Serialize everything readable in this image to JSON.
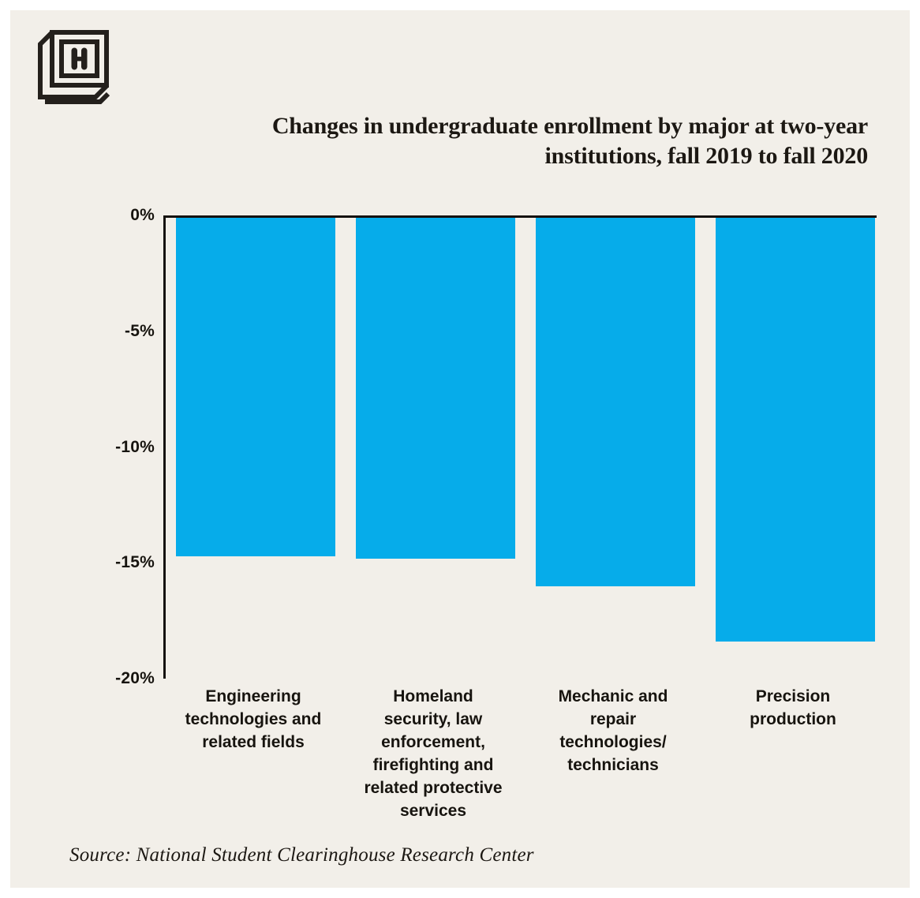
{
  "page": {
    "background": "#FFFFFF",
    "panel_background": "#F2EFE9",
    "text_color": "#1C1813"
  },
  "logo": {
    "name": "hechinger-report-logo",
    "letter": "H"
  },
  "title": {
    "text": "Changes in undergraduate enrollment by major at two-year institutions, fall 2019 to fall 2020",
    "lines": "Changes in undergraduate enrollment by major at two-year\ninstitutions, fall 2019 to fall 2020"
  },
  "source": {
    "text": "Source: National Student Clearinghouse Research Center"
  },
  "chart_data": {
    "type": "bar",
    "title": "Changes in undergraduate enrollment by major at two-year institutions, fall 2019 to fall 2020",
    "categories": [
      "Engineering technologies and related fields",
      "Homeland security, law enforcement, firefighting and related protective services",
      "Mechanic and repair technologies/technicians",
      "Precision production"
    ],
    "category_label_lines": [
      "Engineering\ntechnologies and\nrelated fields",
      "Homeland\nsecurity, law\nenforcement,\nfirefighting and\nrelated protective\nservices",
      "Mechanic and\nrepair\ntechnologies/\ntechnicians",
      "Precision\nproduction"
    ],
    "values": [
      -14.7,
      -14.8,
      -16.0,
      -18.4
    ],
    "unit": "%",
    "xlabel": "",
    "ylabel": "",
    "ylim": [
      -20,
      0
    ],
    "yticks": [
      "0%",
      "-5%",
      "-10%",
      "-15%",
      "-20%"
    ],
    "bar_color": "#06ACEA",
    "bars_direction": "down-from-zero",
    "grid": false,
    "legend": false,
    "source": "National Student Clearinghouse Research Center"
  }
}
